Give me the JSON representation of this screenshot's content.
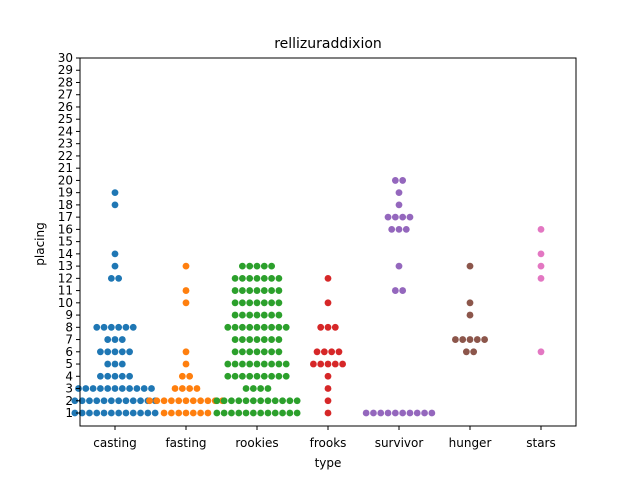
{
  "chart_data": {
    "type": "scatter",
    "title": "rellizuraddixion",
    "xlabel": "type",
    "ylabel": "placing",
    "ylim": [
      0,
      30
    ],
    "yticks": [
      1,
      2,
      3,
      4,
      5,
      6,
      7,
      8,
      9,
      10,
      11,
      12,
      13,
      14,
      15,
      16,
      17,
      18,
      19,
      20,
      21,
      22,
      23,
      24,
      25,
      26,
      27,
      28,
      29,
      30
    ],
    "grid": false,
    "categories": [
      "casting",
      "fasting",
      "rookies",
      "frooks",
      "survivor",
      "hunger",
      "stars"
    ],
    "colors": {
      "casting": "#1f77b4",
      "fasting": "#ff7f0e",
      "rookies": "#2ca02c",
      "frooks": "#d62728",
      "survivor": "#9467bd",
      "hunger": "#8c564b",
      "stars": "#e377c2"
    },
    "points": {
      "casting": [
        [
          1,
          12
        ],
        [
          2,
          12
        ],
        [
          3,
          11
        ],
        [
          4,
          5
        ],
        [
          5,
          3
        ],
        [
          6,
          5
        ],
        [
          7,
          3
        ],
        [
          8,
          6
        ],
        [
          12,
          2
        ],
        [
          13,
          1
        ],
        [
          14,
          1
        ],
        [
          18,
          1
        ],
        [
          19,
          1
        ]
      ],
      "fasting": [
        [
          1,
          7
        ],
        [
          2,
          11
        ],
        [
          3,
          4
        ],
        [
          4,
          2
        ],
        [
          5,
          1
        ],
        [
          6,
          1
        ],
        [
          10,
          1
        ],
        [
          11,
          1
        ],
        [
          13,
          1
        ]
      ],
      "rookies": [
        [
          1,
          12
        ],
        [
          2,
          12
        ],
        [
          3,
          4
        ],
        [
          4,
          9
        ],
        [
          5,
          9
        ],
        [
          6,
          7
        ],
        [
          7,
          7
        ],
        [
          8,
          9
        ],
        [
          9,
          7
        ],
        [
          10,
          7
        ],
        [
          11,
          7
        ],
        [
          12,
          7
        ],
        [
          13,
          5
        ]
      ],
      "frooks": [
        [
          1,
          1
        ],
        [
          2,
          1
        ],
        [
          3,
          1
        ],
        [
          4,
          1
        ],
        [
          5,
          5
        ],
        [
          6,
          4
        ],
        [
          8,
          3
        ],
        [
          10,
          1
        ],
        [
          12,
          1
        ]
      ],
      "survivor": [
        [
          1,
          10
        ],
        [
          11,
          2
        ],
        [
          13,
          1
        ],
        [
          16,
          3
        ],
        [
          17,
          4
        ],
        [
          18,
          1
        ],
        [
          19,
          1
        ],
        [
          20,
          2
        ]
      ],
      "hunger": [
        [
          6,
          2
        ],
        [
          7,
          5
        ],
        [
          9,
          1
        ],
        [
          10,
          1
        ],
        [
          13,
          1
        ]
      ],
      "stars": [
        [
          6,
          1
        ],
        [
          12,
          1
        ],
        [
          13,
          1
        ],
        [
          14,
          1
        ],
        [
          16,
          1
        ]
      ]
    }
  }
}
